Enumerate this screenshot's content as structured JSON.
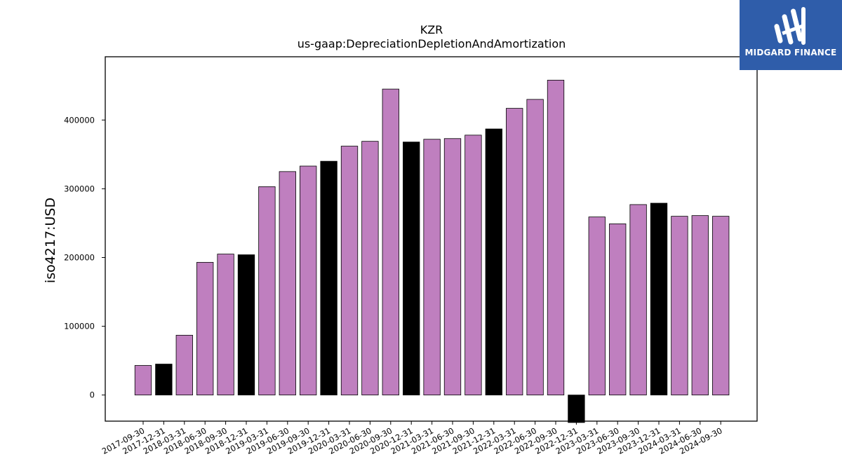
{
  "chart_data": {
    "type": "bar",
    "title": "KZR",
    "subtitle": "us-gaap:DepreciationDepletionAndAmortization",
    "ylabel": "iso4217:USD",
    "xlabel": "",
    "ylim": [
      -38000,
      492000
    ],
    "yticks": [
      0,
      100000,
      200000,
      300000,
      400000
    ],
    "grid": false,
    "categories": [
      "2017-09-30",
      "2017-12-31",
      "2018-03-31",
      "2018-06-30",
      "2018-09-30",
      "2018-12-31",
      "2019-03-31",
      "2019-06-30",
      "2019-09-30",
      "2019-12-31",
      "2020-03-31",
      "2020-06-30",
      "2020-09-30",
      "2020-12-31",
      "2021-03-31",
      "2021-06-30",
      "2021-09-30",
      "2021-12-31",
      "2022-03-31",
      "2022-06-30",
      "2022-09-30",
      "2022-12-31",
      "2023-03-31",
      "2023-06-30",
      "2023-09-30",
      "2023-12-31",
      "2024-03-31",
      "2024-06-30",
      "2024-09-30"
    ],
    "values": [
      43000,
      45000,
      87000,
      193000,
      205000,
      204000,
      303000,
      325000,
      333000,
      340000,
      362000,
      369000,
      445000,
      368000,
      372000,
      373000,
      378000,
      387000,
      417000,
      430000,
      458000,
      -40000,
      259000,
      249000,
      277000,
      279000,
      260000,
      261000,
      260000
    ],
    "colors": {
      "quarter": "#bf7fbf",
      "year_end": "#000000"
    },
    "bar_color_keys": [
      "quarter",
      "year_end",
      "quarter",
      "quarter",
      "quarter",
      "year_end",
      "quarter",
      "quarter",
      "quarter",
      "year_end",
      "quarter",
      "quarter",
      "quarter",
      "year_end",
      "quarter",
      "quarter",
      "quarter",
      "year_end",
      "quarter",
      "quarter",
      "quarter",
      "year_end",
      "quarter",
      "quarter",
      "quarter",
      "year_end",
      "quarter",
      "quarter",
      "quarter"
    ]
  },
  "logo": {
    "text": "MIDGARD FINANCE",
    "background": "#2f5daa"
  }
}
